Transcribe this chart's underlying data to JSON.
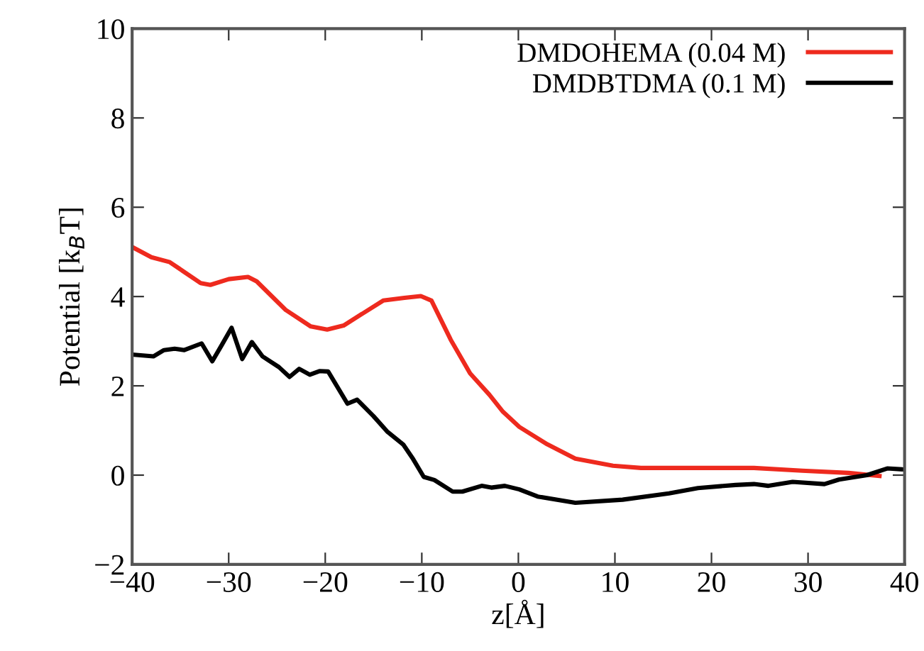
{
  "chart_data": {
    "type": "line",
    "xlabel": "z[Å]",
    "ylabel": "Potential [k$_{B}$T]",
    "xlim": [
      -40,
      40
    ],
    "ylim": [
      -2,
      10
    ],
    "xticks": [
      -40,
      -30,
      -20,
      -10,
      0,
      10,
      20,
      30,
      40
    ],
    "yticks": [
      -2,
      0,
      2,
      4,
      6,
      8,
      10
    ],
    "grid": false,
    "legend": "top right",
    "line_style": "solid",
    "marker": "none",
    "series": [
      {
        "name": "DMDOHEMA (0.04 M)",
        "color": "#ee2a1e",
        "x": [
          -40,
          -38,
          -36.1,
          -32.9,
          -31.9,
          -30,
          -28,
          -27.1,
          -24.1,
          -21.5,
          -19.8,
          -18.1,
          -14,
          -11.8,
          -10.1,
          -9,
          -7,
          -5,
          -3,
          -1.6,
          0.1,
          3,
          5.9,
          9.8,
          12.7,
          19.6,
          24.4,
          29.4,
          34.2,
          37.4
        ],
        "values": [
          5.11,
          4.88,
          4.77,
          4.3,
          4.26,
          4.39,
          4.44,
          4.34,
          3.7,
          3.33,
          3.26,
          3.35,
          3.91,
          3.97,
          4.01,
          3.91,
          3.03,
          2.28,
          1.8,
          1.42,
          1.08,
          0.69,
          0.37,
          0.21,
          0.16,
          0.16,
          0.16,
          0.1,
          0.05,
          -0.02
        ]
      },
      {
        "name": "DMDBTDMA (0.1 M)",
        "color": "#000000",
        "x": [
          -40,
          -37.8,
          -36.7,
          -35.6,
          -34.6,
          -32.8,
          -31.7,
          -30.7,
          -29.7,
          -28.6,
          -27.6,
          -26.5,
          -24.8,
          -23.7,
          -22.7,
          -21.6,
          -20.6,
          -19.7,
          -17.7,
          -16.7,
          -15,
          -13.6,
          -11.9,
          -10.9,
          -9.8,
          -8.7,
          -6.8,
          -5.8,
          -3.8,
          -2.8,
          -1.4,
          0.1,
          2,
          5.9,
          10.8,
          15.6,
          18.6,
          22.5,
          24.4,
          25.9,
          28.4,
          31.7,
          33.2,
          36.1,
          38.2,
          39.7
        ],
        "values": [
          2.7,
          2.66,
          2.8,
          2.83,
          2.8,
          2.95,
          2.55,
          2.92,
          3.3,
          2.6,
          2.98,
          2.66,
          2.42,
          2.2,
          2.38,
          2.25,
          2.33,
          2.32,
          1.6,
          1.69,
          1.32,
          0.98,
          0.68,
          0.36,
          -0.04,
          -0.11,
          -0.37,
          -0.37,
          -0.24,
          -0.28,
          -0.24,
          -0.32,
          -0.48,
          -0.62,
          -0.55,
          -0.41,
          -0.29,
          -0.22,
          -0.2,
          -0.24,
          -0.15,
          -0.2,
          -0.1,
          0.0,
          0.15,
          0.13
        ]
      }
    ]
  }
}
